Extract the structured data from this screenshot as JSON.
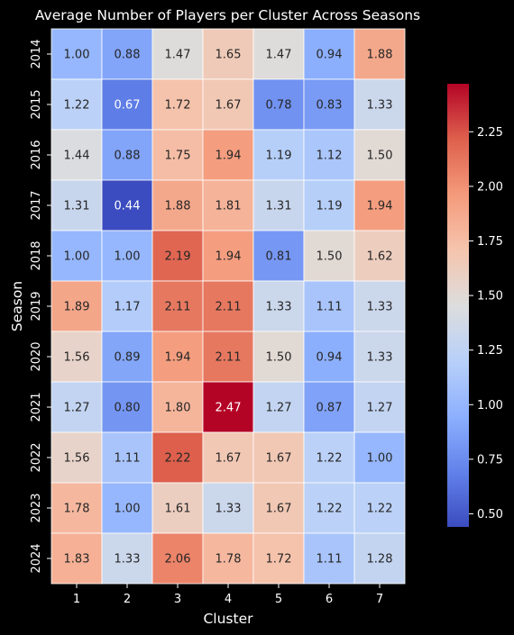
{
  "chart_data": {
    "type": "heatmap",
    "title": "Average Number of Players per Cluster Across Seasons",
    "xlabel": "Cluster",
    "ylabel": "Season",
    "x_categories": [
      "1",
      "2",
      "3",
      "4",
      "5",
      "6",
      "7"
    ],
    "y_categories": [
      "2014",
      "2015",
      "2016",
      "2017",
      "2018",
      "2019",
      "2020",
      "2021",
      "2022",
      "2023",
      "2024"
    ],
    "values": [
      [
        "1.00",
        "0.88",
        "1.47",
        "1.65",
        "1.47",
        "0.94",
        "1.88"
      ],
      [
        "1.22",
        "0.67",
        "1.72",
        "1.67",
        "0.78",
        "0.83",
        "1.33"
      ],
      [
        "1.44",
        "0.88",
        "1.75",
        "1.94",
        "1.19",
        "1.12",
        "1.50"
      ],
      [
        "1.31",
        "0.44",
        "1.88",
        "1.81",
        "1.31",
        "1.19",
        "1.94"
      ],
      [
        "1.00",
        "1.00",
        "2.19",
        "1.94",
        "0.81",
        "1.50",
        "1.62"
      ],
      [
        "1.89",
        "1.17",
        "2.11",
        "2.11",
        "1.33",
        "1.11",
        "1.33"
      ],
      [
        "1.56",
        "0.89",
        "1.94",
        "2.11",
        "1.50",
        "0.94",
        "1.33"
      ],
      [
        "1.27",
        "0.80",
        "1.80",
        "2.47",
        "1.27",
        "0.87",
        "1.27"
      ],
      [
        "1.56",
        "1.11",
        "2.22",
        "1.67",
        "1.67",
        "1.22",
        "1.00"
      ],
      [
        "1.78",
        "1.00",
        "1.61",
        "1.33",
        "1.67",
        "1.22",
        "1.22"
      ],
      [
        "1.83",
        "1.33",
        "2.06",
        "1.78",
        "1.72",
        "1.11",
        "1.28"
      ]
    ],
    "colormap": "coolwarm",
    "vmin": 0.44,
    "vmax": 2.47,
    "colorbar_ticks": [
      "0.50",
      "0.75",
      "1.00",
      "1.25",
      "1.50",
      "1.75",
      "2.00",
      "2.25"
    ],
    "grid_line_color": "#ffffff",
    "background_color": "#000000"
  }
}
